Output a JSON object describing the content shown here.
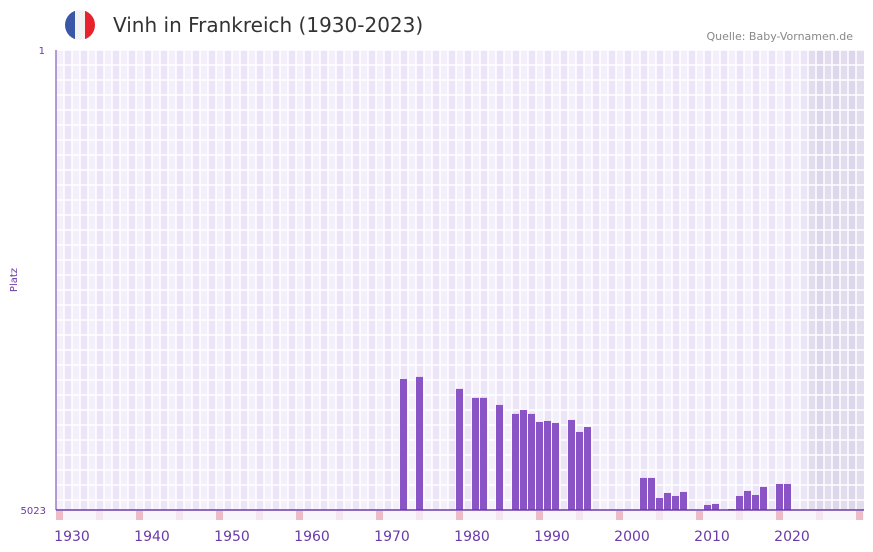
{
  "header": {
    "title": "Vinh in Frankreich (1930-2023)",
    "source": "Quelle: Baby-Vornamen.de",
    "flag_colors": [
      "#3a56a6",
      "#f2f2f2",
      "#e8222d"
    ]
  },
  "chart_data": {
    "type": "bar",
    "title": "Vinh in Frankreich (1930-2023)",
    "xlabel": "",
    "ylabel": "Platz",
    "ylim": [
      1,
      5023
    ],
    "y_inverted": true,
    "xlim": [
      1930,
      2030
    ],
    "y_tick_labels": [
      "1",
      "5023"
    ],
    "x_tick_labels": [
      "1930",
      "1940",
      "1950",
      "1960",
      "1970",
      "1980",
      "1990",
      "2000",
      "2010",
      "2020"
    ],
    "future_shaded_from": 2024,
    "bar_color": "#8a54c6",
    "x": [
      1973,
      1975,
      1980,
      1982,
      1983,
      1985,
      1987,
      1988,
      1989,
      1990,
      1991,
      1992,
      1994,
      1995,
      1996,
      2003,
      2004,
      2005,
      2006,
      2007,
      2008,
      2011,
      2012,
      2014,
      2015,
      2016,
      2017,
      2018,
      2020,
      2021
    ],
    "values": [
      3593,
      3570,
      3701,
      3799,
      3799,
      3876,
      3974,
      3931,
      3974,
      4062,
      4051,
      4073,
      4040,
      4171,
      4117,
      4673,
      4673,
      4892,
      4837,
      4870,
      4826,
      4968,
      4957,
      5012,
      4870,
      4815,
      4859,
      4771,
      4739,
      4739
    ]
  }
}
